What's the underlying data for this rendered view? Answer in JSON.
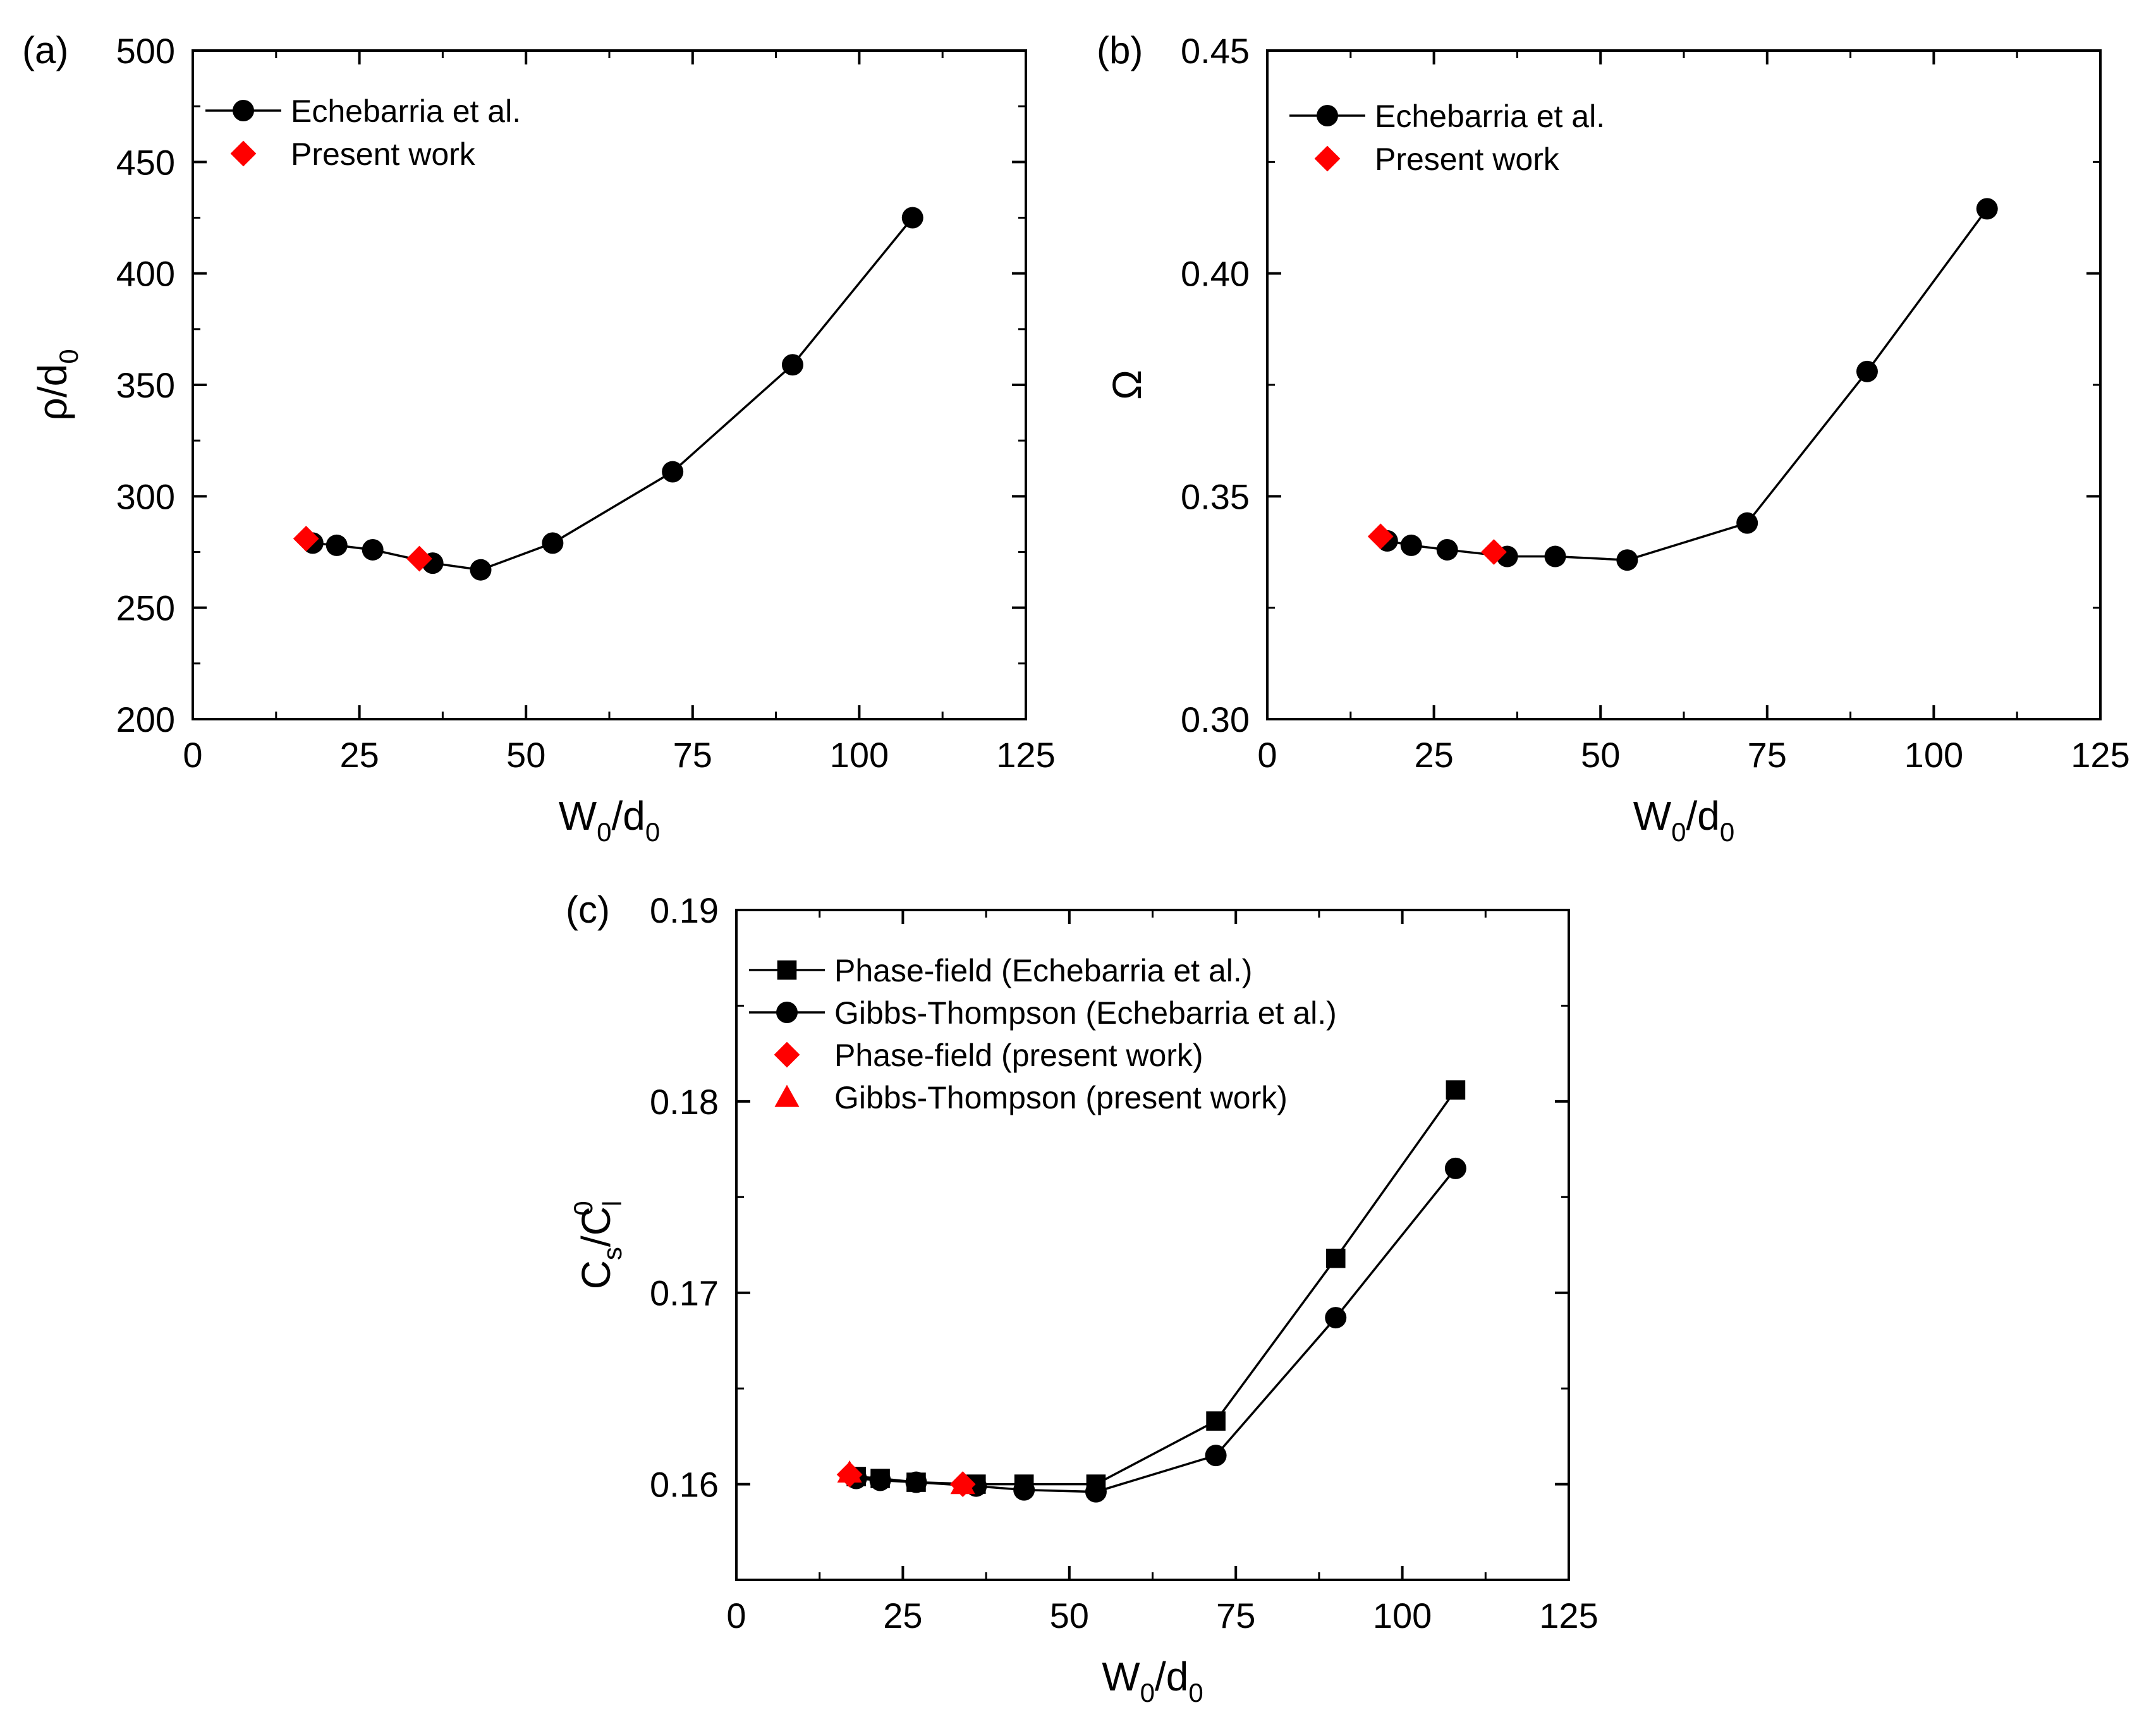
{
  "chart_data": [
    {
      "type": "line",
      "panel_label": "(a)",
      "xlabel": {
        "main": "W",
        "sub1": "0",
        "mid": "/d",
        "sub2": "0"
      },
      "ylabel": {
        "main": "ρ/d",
        "sub1": "0"
      },
      "xlim": [
        0,
        125
      ],
      "ylim": [
        200,
        500
      ],
      "xticks": [
        "0",
        "25",
        "50",
        "75",
        "100",
        "125"
      ],
      "yticks": [
        "200",
        "250",
        "300",
        "350",
        "400",
        "450",
        "500"
      ],
      "legend_position": "top-left",
      "series": [
        {
          "name": "Echebarria et al.",
          "marker": "circle",
          "color": "#000000",
          "line": true,
          "x": [
            18,
            21.6,
            27,
            36,
            43.2,
            54,
            72,
            90,
            108
          ],
          "y": [
            279,
            278,
            276,
            270,
            267,
            279,
            311,
            359,
            425
          ]
        },
        {
          "name": "Present work",
          "marker": "diamond",
          "color": "#ff0000",
          "line": false,
          "x": [
            17,
            34
          ],
          "y": [
            281,
            272
          ]
        }
      ]
    },
    {
      "type": "line",
      "panel_label": "(b)",
      "xlabel": {
        "main": "W",
        "sub1": "0",
        "mid": "/d",
        "sub2": "0"
      },
      "ylabel": {
        "main": "Ω",
        "sub1": ""
      },
      "xlim": [
        0,
        125
      ],
      "ylim": [
        0.3,
        0.45
      ],
      "xticks": [
        "0",
        "25",
        "50",
        "75",
        "100",
        "125"
      ],
      "yticks": [
        "0.30",
        "0.35",
        "0.40",
        "0.45"
      ],
      "legend_position": "top-left",
      "series": [
        {
          "name": "Echebarria et al.",
          "marker": "circle",
          "color": "#000000",
          "line": true,
          "x": [
            18,
            21.6,
            27,
            36,
            43.2,
            54,
            72,
            90,
            108
          ],
          "y": [
            0.34,
            0.339,
            0.338,
            0.3365,
            0.3365,
            0.3357,
            0.344,
            0.378,
            0.4145
          ]
        },
        {
          "name": "Present work",
          "marker": "diamond",
          "color": "#ff0000",
          "line": false,
          "x": [
            17,
            34
          ],
          "y": [
            0.341,
            0.3375
          ]
        }
      ]
    },
    {
      "type": "line",
      "panel_label": "(c)",
      "xlabel": {
        "main": "W",
        "sub1": "0",
        "mid": "/d",
        "sub2": "0"
      },
      "ylabel": {
        "main": "C",
        "sub1": "s",
        "mid": "/C",
        "sub2": "l",
        "sup": "0"
      },
      "xlim": [
        0,
        125
      ],
      "ylim": [
        0.155,
        0.19
      ],
      "xticks": [
        "0",
        "25",
        "50",
        "75",
        "100",
        "125"
      ],
      "yticks": [
        "0.16",
        "0.17",
        "0.18",
        "0.19"
      ],
      "legend_position": "top-left",
      "series": [
        {
          "name": "Phase-field (Echebarria et al.)",
          "marker": "square",
          "color": "#000000",
          "line": true,
          "x": [
            18,
            21.6,
            27,
            36,
            43.2,
            54,
            72,
            90,
            108
          ],
          "y": [
            0.1604,
            0.1603,
            0.1601,
            0.16,
            0.16,
            0.16,
            0.1633,
            0.1718,
            0.1806
          ]
        },
        {
          "name": "Gibbs-Thompson (Echebarria et al.)",
          "marker": "circle",
          "color": "#000000",
          "line": true,
          "x": [
            18,
            21.6,
            27,
            36,
            43.2,
            54,
            72,
            90,
            108
          ],
          "y": [
            0.1603,
            0.1602,
            0.1601,
            0.1599,
            0.1597,
            0.1596,
            0.1615,
            0.1687,
            0.1765
          ]
        },
        {
          "name": "Phase-field (present work)",
          "marker": "diamond",
          "color": "#ff0000",
          "line": false,
          "x": [
            17,
            34
          ],
          "y": [
            0.1605,
            0.16
          ]
        },
        {
          "name": "Gibbs-Thompson (present work)",
          "marker": "triangle",
          "color": "#ff0000",
          "line": false,
          "x": [
            17,
            34
          ],
          "y": [
            0.1606,
            0.16
          ]
        }
      ]
    }
  ]
}
